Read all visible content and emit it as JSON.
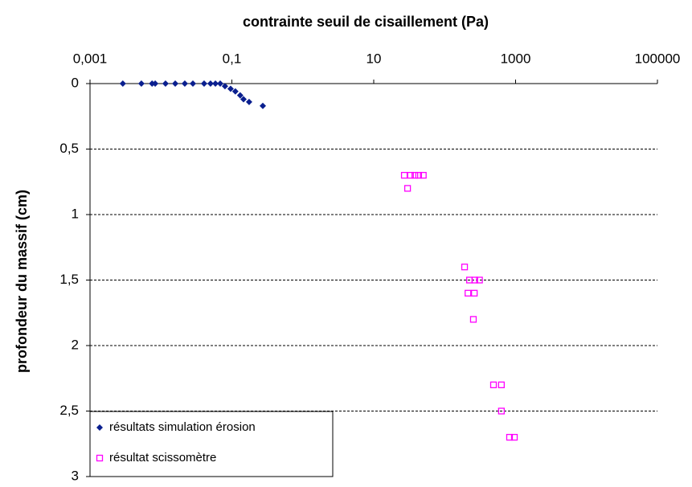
{
  "chart_data": {
    "type": "scatter",
    "title": "contrainte seuil de cisaillement (Pa)",
    "y_label": "profondeur du massif (cm)",
    "x_scale": "log",
    "y_inverted": true,
    "grid": true,
    "legend_position": "lower left",
    "xlim": [
      0.001,
      100000
    ],
    "xticks": [
      {
        "value": 0.001,
        "label": "0,001"
      },
      {
        "value": 0.1,
        "label": "0,1"
      },
      10,
      1000,
      100000
    ],
    "ylim": [
      0,
      3
    ],
    "yticks": [
      0,
      {
        "value": 0.5,
        "label": "0,5"
      },
      1,
      {
        "value": 1.5,
        "label": "1,5"
      },
      2,
      {
        "value": 2.5,
        "label": "2,5"
      },
      3
    ],
    "series": [
      {
        "name": "résultats simulation érosion",
        "color": "#0a1f8f",
        "marker": "diamond",
        "x": [
          0.0029,
          0.0053,
          0.0075,
          0.0083,
          0.0116,
          0.0159,
          0.0217,
          0.0282,
          0.0406,
          0.05,
          0.0586,
          0.0685,
          0.08,
          0.096,
          0.112,
          0.131,
          0.146,
          0.175,
          0.273
        ],
        "values": [
          0,
          0,
          0,
          0,
          0,
          0,
          0,
          0,
          0,
          0,
          0,
          0,
          0.02,
          0.04,
          0.06,
          0.09,
          0.12,
          0.14,
          0.17
        ]
      },
      {
        "name": "résultat scissomètre",
        "color": "#ff00ff",
        "marker": "square",
        "x": [
          27,
          33,
          38,
          43,
          50,
          30,
          191,
          224,
          266,
          310,
          213,
          262,
          254,
          488,
          631,
          631,
          822,
          962
        ],
        "values": [
          0.7,
          0.7,
          0.7,
          0.7,
          0.7,
          0.8,
          1.4,
          1.5,
          1.5,
          1.5,
          1.6,
          1.6,
          1.8,
          2.3,
          2.3,
          2.5,
          2.7,
          2.7
        ]
      }
    ]
  }
}
